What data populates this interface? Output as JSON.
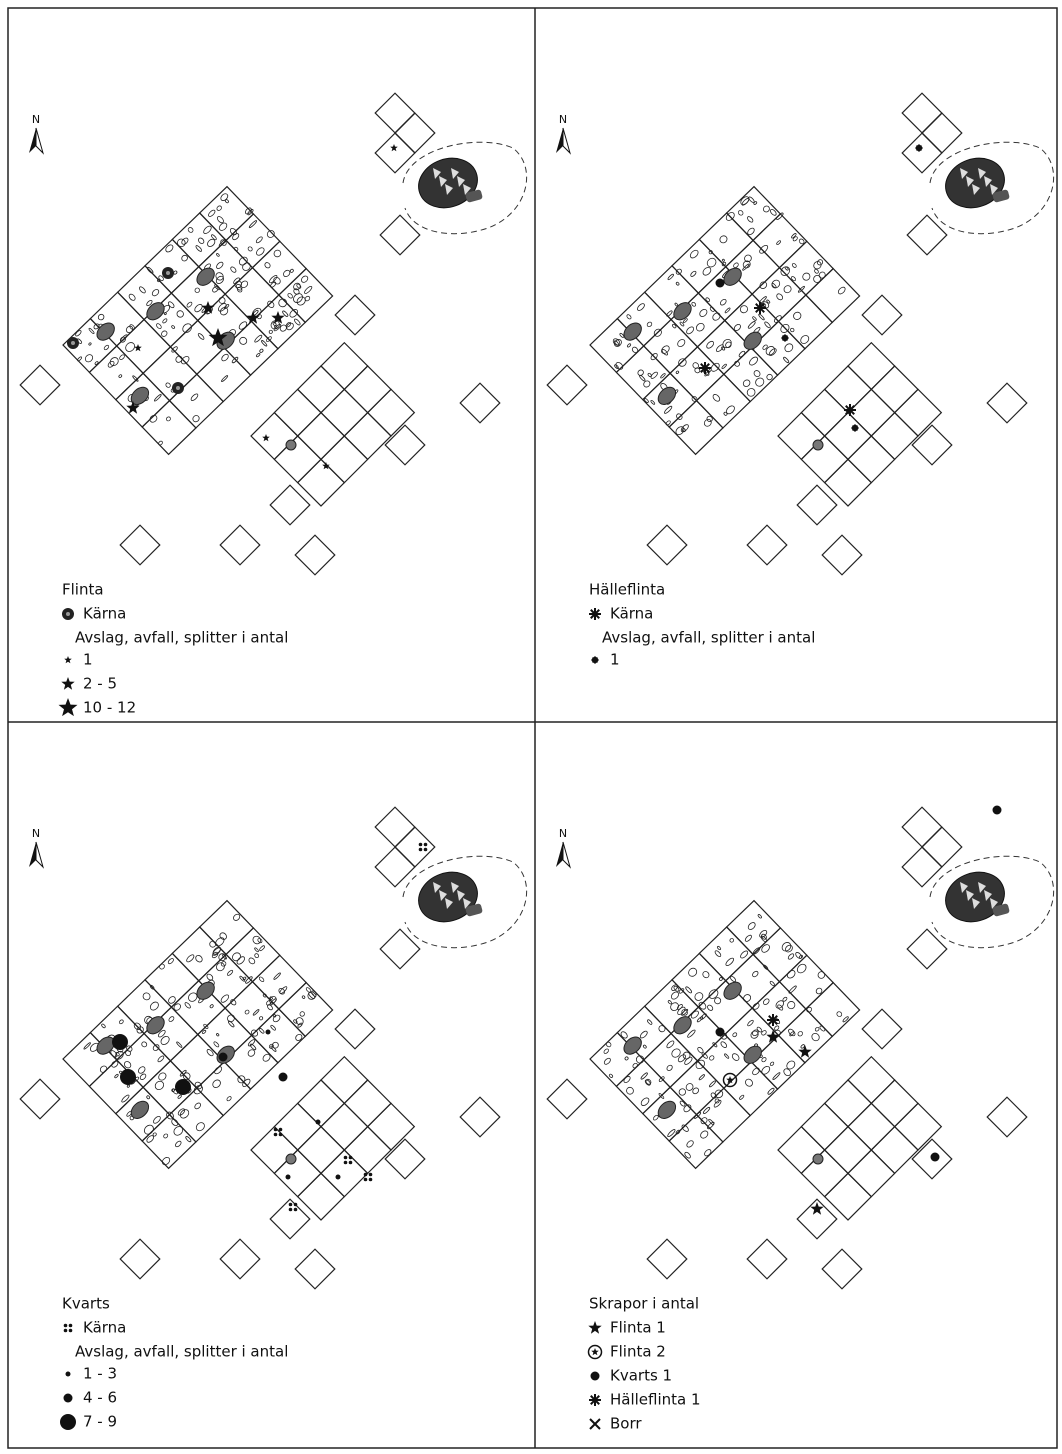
{
  "panels": [
    {
      "north": "N",
      "legend": {
        "title": "Flinta",
        "core": "Kärna",
        "subtitle": "Avslag, avfall, splitter i antal",
        "items": [
          "1",
          "2 - 5",
          "10 - 12"
        ]
      }
    },
    {
      "north": "N",
      "legend": {
        "title": "Hälleflinta",
        "core": "Kärna",
        "subtitle": "Avslag, avfall, splitter i antal",
        "items": [
          "1"
        ]
      }
    },
    {
      "north": "N",
      "legend": {
        "title": "Kvarts",
        "core": "Kärna",
        "subtitle": "Avslag, avfall, splitter i antal",
        "items": [
          "1 - 3",
          "4 - 6",
          "7 - 9"
        ]
      }
    },
    {
      "north": "N",
      "legend": {
        "title": "Skrapor i antal",
        "items": [
          "Flinta 1",
          "Flinta 2",
          "Kvarts 1",
          "Hälleflinta 1",
          "Borr"
        ]
      }
    }
  ]
}
